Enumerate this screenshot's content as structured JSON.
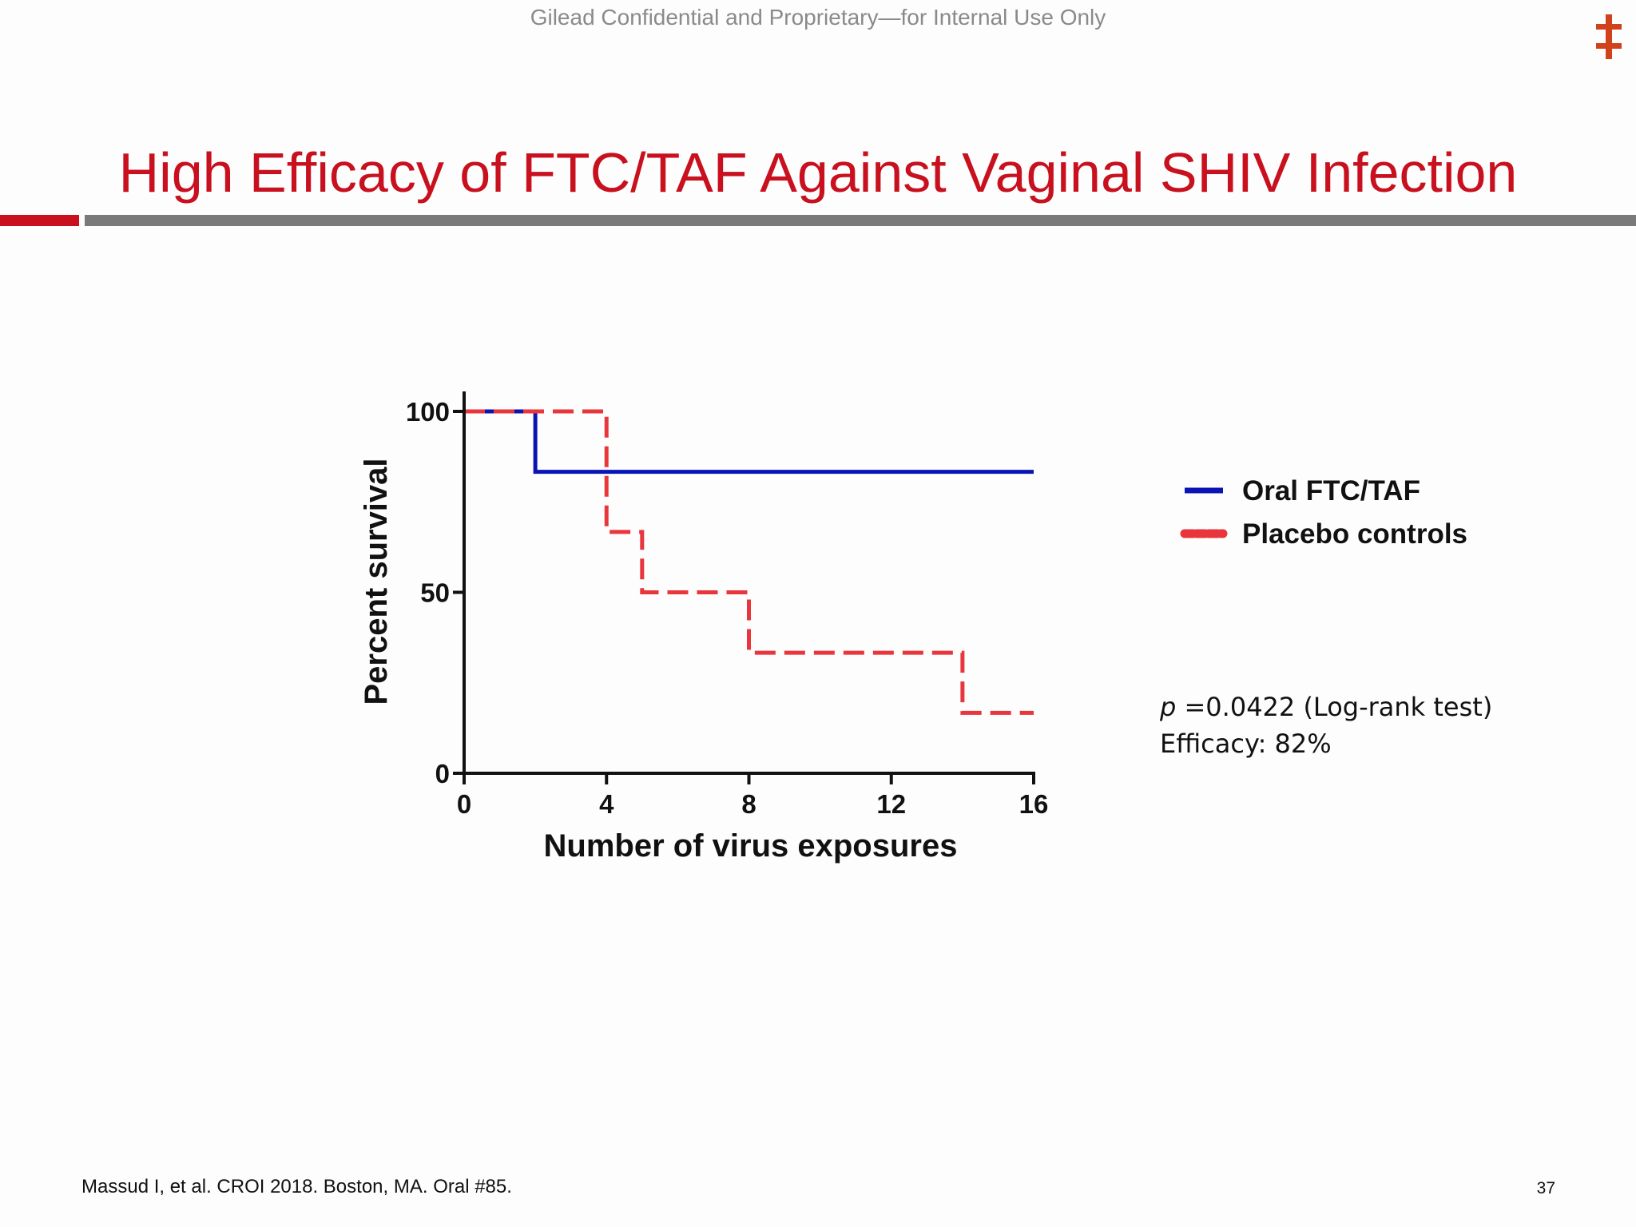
{
  "header": {
    "confidential": "Gilead Confidential and Proprietary—for Internal Use Only",
    "logo_icon": "double-dagger-logo-icon",
    "logo_color": "#d0421b"
  },
  "slide": {
    "title": "High Efficacy of FTC/TAF Against Vaginal SHIV Infection",
    "title_color": "#c8101e",
    "rule_colors": {
      "accent": "#c8101e",
      "bar": "#7a7a7a"
    }
  },
  "stats": {
    "p_symbol": "p",
    "p_text": " =0.0422 (Log-rank test)",
    "efficacy": "Efficacy: 82%"
  },
  "footer": {
    "citation": "Massud I, et al. CROI 2018. Boston, MA. Oral #85.",
    "page_number": "37"
  },
  "chart_data": {
    "type": "line",
    "subtype": "kaplan-meier-step",
    "title": "",
    "xlabel": "Number of virus exposures",
    "ylabel": "Percent survival",
    "xlim": [
      0,
      16
    ],
    "ylim": [
      0,
      100
    ],
    "xticks": [
      0,
      4,
      8,
      12,
      16
    ],
    "yticks": [
      0,
      50,
      100
    ],
    "grid": false,
    "legend_position": "right",
    "series": [
      {
        "name": "Oral FTC/TAF",
        "color": "#0a14b4",
        "style": "solid",
        "x": [
          0,
          2,
          16
        ],
        "y": [
          100,
          83.3,
          83.3
        ]
      },
      {
        "name": "Placebo controls",
        "color": "#e8363c",
        "style": "dashed",
        "x": [
          0,
          4,
          5,
          8,
          14,
          16
        ],
        "y": [
          100,
          66.7,
          50,
          33.3,
          16.7,
          16.7
        ]
      }
    ]
  }
}
